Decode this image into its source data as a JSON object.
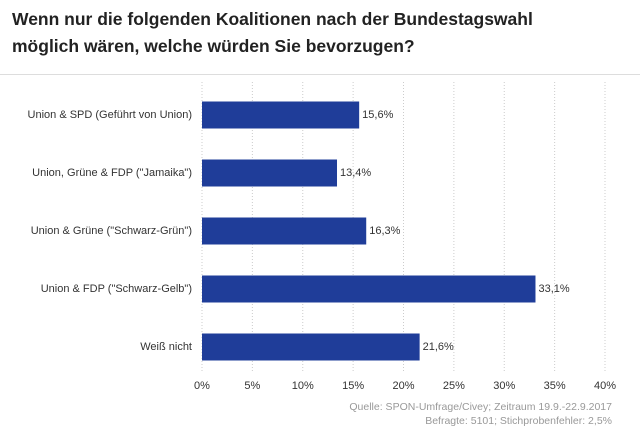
{
  "chart_data": {
    "type": "bar",
    "orientation": "horizontal",
    "title": "Wenn nur die folgenden Koalitionen nach der Bundestagswahl möglich wären, welche würden Sie bevorzugen?",
    "categories": [
      "Union & SPD (Geführt von Union)",
      "Union, Grüne & FDP (\"Jamaika\")",
      "Union & Grüne (\"Schwarz-Grün\")",
      "Union & FDP (\"Schwarz-Gelb\")",
      "Weiß nicht"
    ],
    "values": [
      15.6,
      13.4,
      16.3,
      33.1,
      21.6
    ],
    "value_labels": [
      "15,6%",
      "13,4%",
      "16,3%",
      "33,1%",
      "21,6%"
    ],
    "color": "#1f3d99",
    "xlim": [
      0,
      40
    ],
    "xticks": [
      {
        "value": 0,
        "label": "0%"
      },
      {
        "value": 5,
        "label": "5%"
      },
      {
        "value": 10,
        "label": "10%"
      },
      {
        "value": 15,
        "label": "15%"
      },
      {
        "value": 20,
        "label": "20%"
      },
      {
        "value": 25,
        "label": "25%"
      },
      {
        "value": 30,
        "label": "30%"
      },
      {
        "value": 35,
        "label": "35%"
      },
      {
        "value": 40,
        "label": "40%"
      }
    ],
    "grid": true,
    "source": [
      "Quelle: SPON-Umfrage/Civey; Zeitraum 19.9.-22.9.2017",
      "Befragte: 5101; Stichprobenfehler: 2,5%"
    ]
  }
}
